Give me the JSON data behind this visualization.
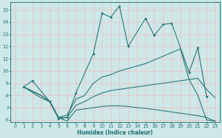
{
  "xlabel": "Humidex (Indice chaleur)",
  "bg_color": "#cce8e8",
  "line_color": "#1a7070",
  "grid_color": "#f0c0c0",
  "xlim": [
    -0.5,
    23.5
  ],
  "ylim": [
    5.8,
    15.6
  ],
  "xticks": [
    0,
    1,
    2,
    3,
    4,
    5,
    6,
    7,
    8,
    9,
    10,
    11,
    12,
    13,
    14,
    15,
    16,
    17,
    18,
    19,
    20,
    21,
    22,
    23
  ],
  "yticks": [
    6,
    7,
    8,
    9,
    10,
    11,
    12,
    13,
    14,
    15
  ],
  "lines": [
    {
      "x": [
        1,
        2,
        4,
        5,
        6,
        7,
        9,
        10,
        11,
        12,
        13,
        15,
        16,
        17,
        18,
        20,
        21,
        22
      ],
      "y": [
        8.7,
        9.2,
        7.5,
        6.1,
        6.2,
        8.2,
        11.4,
        14.7,
        14.4,
        15.3,
        12.0,
        14.3,
        12.9,
        13.8,
        13.9,
        9.9,
        11.9,
        7.9
      ],
      "marker": true
    },
    {
      "x": [
        1,
        3,
        4,
        5,
        6,
        7,
        8,
        9,
        10,
        11,
        12,
        13,
        14,
        15,
        16,
        17,
        18,
        19,
        20,
        21,
        22,
        23
      ],
      "y": [
        8.7,
        8.0,
        7.5,
        6.2,
        6.4,
        7.7,
        8.0,
        9.0,
        9.5,
        9.7,
        10.0,
        10.2,
        10.4,
        10.6,
        10.9,
        11.2,
        11.5,
        11.8,
        9.3,
        8.0,
        6.0,
        5.9
      ],
      "marker": false
    },
    {
      "x": [
        1,
        3,
        4,
        5,
        6,
        7,
        8,
        9,
        10,
        11,
        12,
        13,
        14,
        15,
        16,
        17,
        18,
        19,
        20,
        21,
        22,
        23
      ],
      "y": [
        8.7,
        8.0,
        7.5,
        6.2,
        6.2,
        7.2,
        7.5,
        7.9,
        8.2,
        8.4,
        8.5,
        8.6,
        8.7,
        8.8,
        8.9,
        9.0,
        9.1,
        9.2,
        9.3,
        9.4,
        8.5,
        7.8
      ],
      "marker": false
    },
    {
      "x": [
        1,
        3,
        4,
        5,
        6,
        7,
        8,
        9,
        10,
        11,
        12,
        13,
        14,
        15,
        16,
        17,
        18,
        19,
        20,
        21,
        22,
        23
      ],
      "y": [
        8.7,
        7.8,
        7.5,
        6.2,
        5.9,
        6.8,
        6.9,
        7.0,
        7.1,
        7.15,
        7.15,
        7.1,
        7.0,
        6.95,
        6.85,
        6.75,
        6.65,
        6.55,
        6.45,
        6.35,
        6.2,
        5.9
      ],
      "marker": false
    }
  ]
}
